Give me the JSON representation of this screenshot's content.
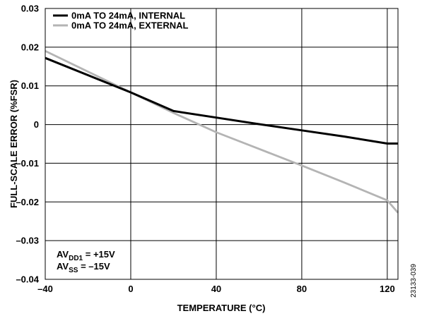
{
  "chart_data": {
    "type": "line",
    "xlabel": "TEMPERATURE (°C)",
    "ylabel": "FULL-SCALE ERROR (%FSR)",
    "xlim": [
      -40,
      125
    ],
    "ylim": [
      -0.04,
      0.03
    ],
    "x_ticks": [
      {
        "value": -40,
        "label": "–40"
      },
      {
        "value": 0,
        "label": "0"
      },
      {
        "value": 40,
        "label": "40"
      },
      {
        "value": 80,
        "label": "80"
      },
      {
        "value": 120,
        "label": "120"
      }
    ],
    "y_ticks": [
      {
        "value": 0.03,
        "label": "0.03"
      },
      {
        "value": 0.02,
        "label": "0.02"
      },
      {
        "value": 0.01,
        "label": "0.01"
      },
      {
        "value": 0,
        "label": "0"
      },
      {
        "value": -0.01,
        "label": "–0.01"
      },
      {
        "value": -0.02,
        "label": "–0.02"
      },
      {
        "value": -0.03,
        "label": "–0.03"
      },
      {
        "value": -0.04,
        "label": "–0.04"
      }
    ],
    "grid": true,
    "legend_position": "top-left",
    "series": [
      {
        "name": "0mA TO 24mA, INTERNAL",
        "color": "#000000",
        "x": [
          -40,
          0,
          20,
          40,
          60,
          80,
          100,
          120,
          125
        ],
        "y": [
          0.0172,
          0.0083,
          0.0035,
          0.0018,
          0.0001,
          -0.0015,
          -0.0031,
          -0.0049,
          -0.0049
        ]
      },
      {
        "name": "0mA TO 24mA, EXTERNAL",
        "color": "#b4b4b4",
        "x": [
          -40,
          0,
          20,
          40,
          60,
          80,
          100,
          120,
          125
        ],
        "y": [
          0.019,
          0.0083,
          0.003,
          -0.002,
          -0.0063,
          -0.0106,
          -0.015,
          -0.0196,
          -0.0228
        ]
      }
    ],
    "annotations": [
      {
        "main": "AV",
        "sub": "DD1",
        "rest": " = +15V"
      },
      {
        "main": "AV",
        "sub": "SS",
        "rest": " = –15V"
      }
    ]
  },
  "figure_id": "23133-039"
}
